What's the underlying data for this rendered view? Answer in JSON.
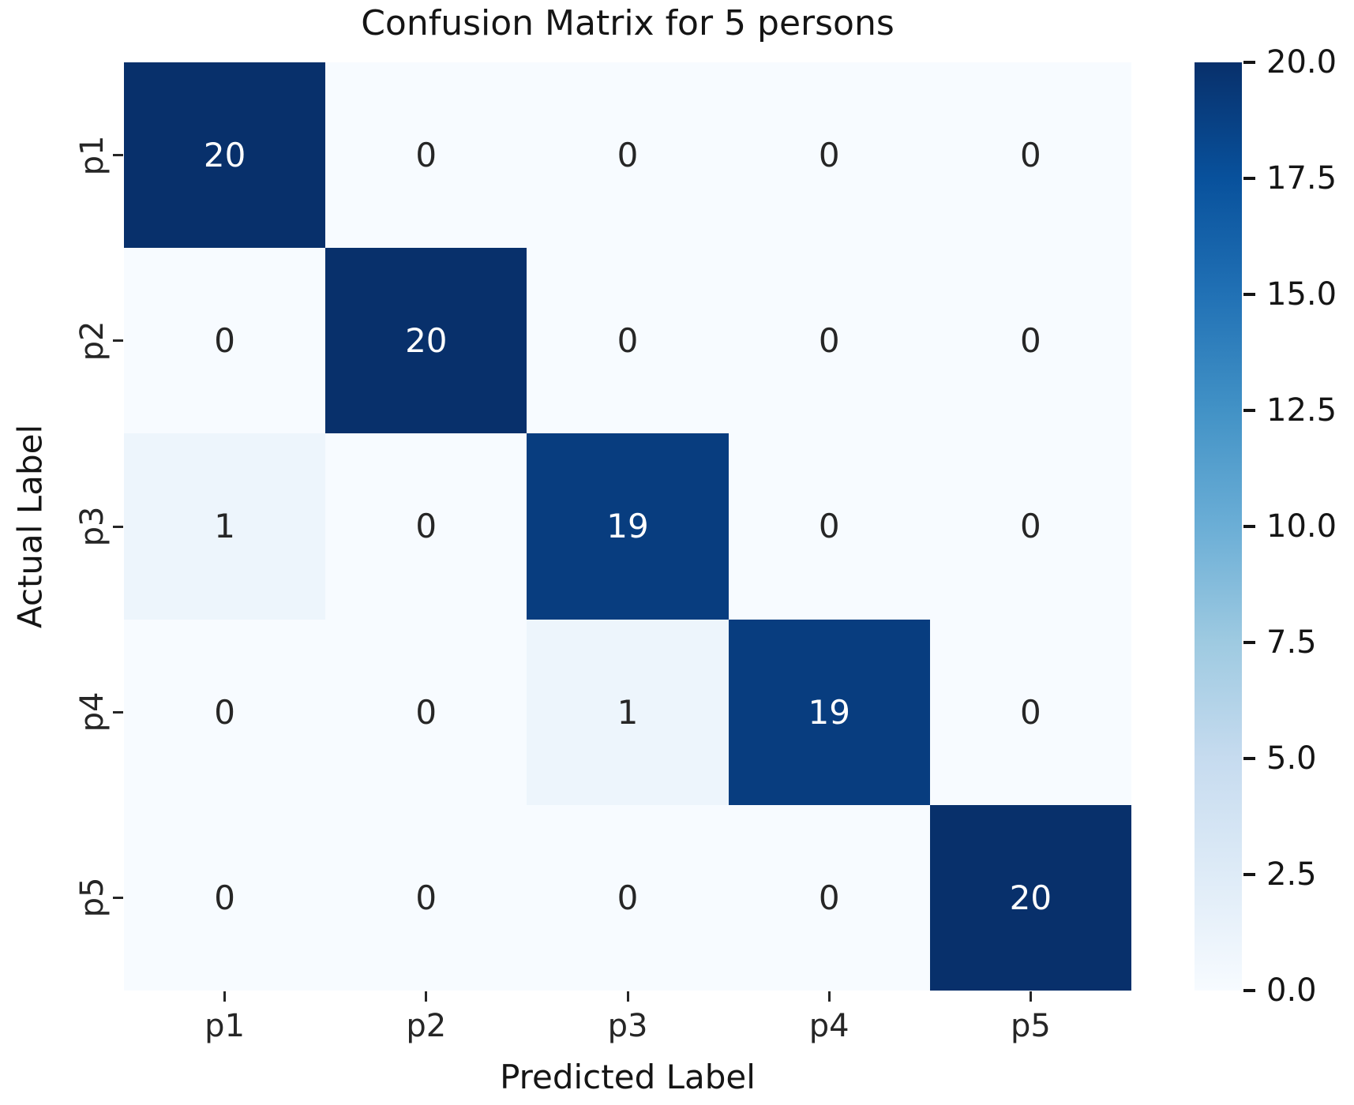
{
  "chart_data": {
    "type": "heatmap",
    "title": "Confusion Matrix for 5 persons",
    "xlabel": "Predicted Label",
    "ylabel": "Actual Label",
    "x_tick_labels": [
      "p1",
      "p2",
      "p3",
      "p4",
      "p5"
    ],
    "y_tick_labels": [
      "p1",
      "p2",
      "p3",
      "p4",
      "p5"
    ],
    "matrix": [
      [
        20,
        0,
        0,
        0,
        0
      ],
      [
        0,
        20,
        0,
        0,
        0
      ],
      [
        1,
        0,
        19,
        0,
        0
      ],
      [
        0,
        0,
        1,
        19,
        0
      ],
      [
        0,
        0,
        0,
        0,
        20
      ]
    ],
    "vmin": 0,
    "vmax": 20,
    "colormap": "Blues",
    "grid": false,
    "colorbar_position": "right",
    "colorbar_ticks": [
      "20.0",
      "17.5",
      "15.0",
      "12.5",
      "10.0",
      "7.5",
      "5.0",
      "2.5",
      "0.0"
    ]
  },
  "colors": {
    "background": "#ffffff",
    "title_text": "#151515",
    "tick_text": "#262626",
    "annot_light": "#ffffff",
    "annot_dark": "#262626",
    "cell_value_0": "#f7fbff",
    "cell_value_1": "#ecf4fb",
    "cell_value_19": "#083d7f",
    "cell_value_20": "#08306b",
    "blues_stops_light_to_dark": [
      "#f7fbff",
      "#deebf7",
      "#c6dbef",
      "#9ecae1",
      "#6baed6",
      "#4292c6",
      "#2171b5",
      "#08519c",
      "#08306b"
    ]
  }
}
